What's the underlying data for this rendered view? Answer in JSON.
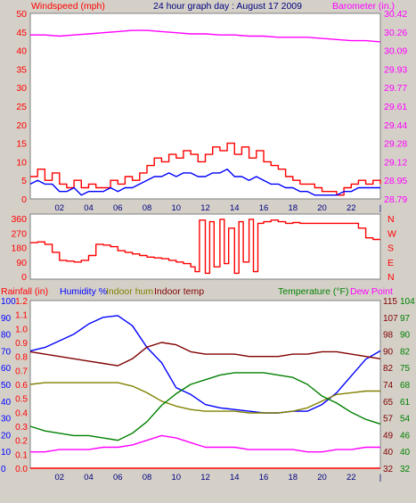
{
  "colors": {
    "background": "#d4d0c8",
    "plot_bg": "#ffffff",
    "frame": "#808080",
    "grid": "#c8c8c8",
    "wind": "#ff0000",
    "wind_avg": "#0000ff",
    "barometer": "#ff00ff",
    "direction": "#ff0000",
    "rainfall": "#ff0000",
    "humidity": "#0000ff",
    "indoor_hum": "#808000",
    "indoor_temp": "#800000",
    "temperature": "#008000",
    "dew_point": "#ff00ff"
  },
  "chart_data": [
    {
      "type": "line",
      "title": "24 hour graph day : August 17 2009",
      "ylabel_left": "Windspeed (mph)",
      "ylabel_right": "Barometer (in.)",
      "x_ticks": [
        "02",
        "04",
        "06",
        "08",
        "10",
        "12",
        "14",
        "16",
        "18",
        "20",
        "22",
        "|"
      ],
      "xlim": [
        0,
        24
      ],
      "ylim_left": [
        0,
        50
      ],
      "ylim_right": [
        28.79,
        30.42
      ],
      "y_ticks_left": [
        "0",
        "5",
        "10",
        "15",
        "20",
        "25",
        "30",
        "35",
        "40",
        "45",
        "50"
      ],
      "y_ticks_right": [
        "28.79",
        "28.95",
        "29.12",
        "29.28",
        "29.44",
        "29.61",
        "29.77",
        "29.93",
        "30.09",
        "30.26",
        "30.42"
      ],
      "grid": false,
      "series": [
        {
          "name": "Windspeed",
          "axis": "left",
          "x": [
            0,
            0.5,
            1,
            1.5,
            2,
            2.5,
            3,
            3.5,
            4,
            4.5,
            5,
            5.5,
            6,
            6.5,
            7,
            7.5,
            8,
            8.5,
            9,
            9.5,
            10,
            10.5,
            11,
            11.5,
            12,
            12.5,
            13,
            13.5,
            14,
            14.5,
            15,
            15.5,
            16,
            16.5,
            17,
            17.5,
            18,
            18.5,
            19,
            19.5,
            20,
            20.5,
            21,
            21.5,
            22,
            22.5,
            23,
            23.5,
            24
          ],
          "y": [
            6,
            8,
            5,
            7,
            4,
            3,
            5,
            3,
            4,
            3,
            3,
            5,
            4,
            6,
            5,
            7,
            9,
            11,
            10,
            12,
            11,
            13,
            12,
            10,
            12,
            14,
            13,
            15,
            12,
            14,
            11,
            13,
            10,
            9,
            8,
            6,
            5,
            4,
            4,
            3,
            2,
            2,
            1,
            3,
            4,
            5,
            4,
            5,
            4
          ]
        },
        {
          "name": "Wind average",
          "axis": "left",
          "x": [
            0,
            0.5,
            1,
            1.5,
            2,
            2.5,
            3,
            3.5,
            4,
            4.5,
            5,
            5.5,
            6,
            6.5,
            7,
            7.5,
            8,
            8.5,
            9,
            9.5,
            10,
            10.5,
            11,
            11.5,
            12,
            12.5,
            13,
            13.5,
            14,
            14.5,
            15,
            15.5,
            16,
            16.5,
            17,
            17.5,
            18,
            18.5,
            19,
            19.5,
            20,
            20.5,
            21,
            21.5,
            22,
            22.5,
            23,
            23.5,
            24
          ],
          "y": [
            4,
            5,
            4,
            4,
            2,
            2,
            3,
            1,
            2,
            2,
            2,
            3,
            2,
            3,
            3,
            4,
            5,
            6,
            6,
            7,
            6,
            7,
            7,
            6,
            6,
            7,
            7,
            8,
            6,
            6,
            5,
            6,
            5,
            4,
            4,
            3,
            3,
            2,
            2,
            1,
            1,
            1,
            1,
            2,
            2,
            3,
            3,
            3,
            3
          ]
        },
        {
          "name": "Barometer",
          "axis": "right",
          "x": [
            0,
            1,
            2,
            3,
            4,
            5,
            6,
            7,
            8,
            9,
            10,
            11,
            12,
            13,
            14,
            15,
            16,
            17,
            18,
            19,
            20,
            21,
            22,
            23,
            24
          ],
          "y": [
            30.23,
            30.23,
            30.22,
            30.23,
            30.24,
            30.25,
            30.26,
            30.27,
            30.27,
            30.26,
            30.25,
            30.24,
            30.24,
            30.23,
            30.23,
            30.22,
            30.22,
            30.21,
            30.21,
            30.21,
            30.2,
            30.19,
            30.18,
            30.18,
            30.17
          ]
        }
      ]
    },
    {
      "type": "line",
      "ylabel_right": "N W S E N",
      "right_letters": [
        "N",
        "W",
        "S",
        "E",
        "N"
      ],
      "ylim": [
        0,
        360
      ],
      "y_ticks": [
        "360",
        "270",
        "180",
        "90",
        "0"
      ],
      "series": [
        {
          "name": "Wind direction",
          "x": [
            0,
            0.5,
            1,
            1.5,
            2,
            2.5,
            3,
            3.5,
            4,
            4.5,
            5,
            5.5,
            6,
            6.5,
            7,
            7.5,
            8,
            8.5,
            9,
            9.5,
            10,
            10.5,
            11,
            11.3,
            11.6,
            12,
            12.3,
            12.6,
            13,
            13.3,
            13.6,
            14,
            14.3,
            14.6,
            15,
            15.3,
            15.6,
            16,
            16.5,
            17,
            17.5,
            18,
            18.5,
            19,
            19.5,
            20,
            20.5,
            21,
            21.5,
            22,
            22.5,
            23,
            23.5,
            24
          ],
          "y": [
            210,
            215,
            200,
            150,
            100,
            95,
            90,
            100,
            130,
            200,
            195,
            185,
            160,
            150,
            140,
            130,
            120,
            115,
            110,
            100,
            90,
            80,
            60,
            30,
            350,
            20,
            340,
            60,
            355,
            80,
            300,
            20,
            340,
            90,
            355,
            30,
            330,
            340,
            350,
            340,
            330,
            335,
            330,
            330,
            330,
            330,
            330,
            330,
            330,
            330,
            300,
            240,
            230,
            230
          ]
        }
      ]
    },
    {
      "type": "line",
      "ylabel_left": "Rainfall (in)",
      "ylabel_left_2": "Humidity %",
      "ylabel_left_3": "Indoor hum",
      "ylabel_left_4": "Indoor temp",
      "ylabel_right": "Temperature (°F)",
      "ylabel_right_2": "Dew Point",
      "y_ticks_rain": [
        "0.0",
        "0.1",
        "0.2",
        "0.3",
        "0.4",
        "0.5",
        "0.6",
        "0.7",
        "0.8",
        "0.9",
        "1.0",
        "1.1",
        "1.2"
      ],
      "y_ticks_hum": [
        "0",
        "10",
        "20",
        "30",
        "40",
        "50",
        "60",
        "70",
        "80",
        "90",
        "100"
      ],
      "y_ticks_indoor": [
        "32",
        "40",
        "49",
        "57",
        "65",
        "74",
        "82",
        "90",
        "98",
        "107",
        "115"
      ],
      "y_ticks_temp": [
        "32",
        "40",
        "46",
        "54",
        "61",
        "68",
        "75",
        "82",
        "90",
        "97",
        "104"
      ],
      "ylim_hum": [
        0,
        100
      ],
      "ylim_rain": [
        0,
        1.2
      ],
      "ylim_temp": [
        32,
        104
      ],
      "series": [
        {
          "name": "Rainfall",
          "axis": "rain",
          "x": [
            0,
            24
          ],
          "y": [
            0,
            0
          ]
        },
        {
          "name": "Humidity",
          "axis": "hum",
          "x": [
            0,
            1,
            2,
            3,
            4,
            5,
            6,
            7,
            8,
            9,
            10,
            11,
            12,
            13,
            14,
            15,
            16,
            17,
            18,
            19,
            20,
            21,
            22,
            23,
            24
          ],
          "y": [
            70,
            72,
            76,
            80,
            86,
            90,
            91,
            85,
            72,
            63,
            48,
            44,
            38,
            36,
            35,
            34,
            33,
            33,
            34,
            34,
            38,
            45,
            55,
            65,
            70
          ]
        },
        {
          "name": "Indoor hum",
          "axis": "hum",
          "x": [
            0,
            1,
            2,
            3,
            4,
            5,
            6,
            7,
            8,
            9,
            10,
            11,
            12,
            13,
            14,
            15,
            16,
            17,
            18,
            19,
            20,
            21,
            22,
            23,
            24
          ],
          "y": [
            50,
            51,
            51,
            51,
            51,
            51,
            51,
            49,
            45,
            40,
            37,
            35,
            34,
            34,
            34,
            33,
            33,
            33,
            34,
            36,
            40,
            44,
            45,
            46,
            46
          ]
        },
        {
          "name": "Indoor temp",
          "axis": "temp",
          "x": [
            0,
            1,
            2,
            3,
            4,
            5,
            6,
            7,
            8,
            9,
            10,
            11,
            12,
            13,
            14,
            15,
            16,
            17,
            18,
            19,
            20,
            21,
            22,
            23,
            24
          ],
          "y": [
            82,
            81,
            80,
            79,
            78,
            77,
            76,
            79,
            84,
            86,
            85,
            82,
            81,
            81,
            81,
            80,
            80,
            80,
            81,
            81,
            82,
            82,
            81,
            80,
            79
          ]
        },
        {
          "name": "Temperature",
          "axis": "temp",
          "x": [
            0,
            1,
            2,
            3,
            4,
            5,
            6,
            7,
            8,
            9,
            10,
            11,
            12,
            13,
            14,
            15,
            16,
            17,
            18,
            19,
            20,
            21,
            22,
            23,
            24
          ],
          "y": [
            50,
            48,
            47,
            46,
            46,
            45,
            44,
            47,
            52,
            59,
            64,
            68,
            70,
            72,
            73,
            73,
            73,
            72,
            71,
            68,
            63,
            60,
            56,
            53,
            51
          ]
        },
        {
          "name": "Dew Point",
          "axis": "temp",
          "x": [
            0,
            1,
            2,
            3,
            4,
            5,
            6,
            7,
            8,
            9,
            10,
            11,
            12,
            13,
            14,
            15,
            16,
            17,
            18,
            19,
            20,
            21,
            22,
            23,
            24
          ],
          "y": [
            39,
            39,
            40,
            40,
            40,
            41,
            41,
            42,
            44,
            46,
            45,
            43,
            41,
            41,
            41,
            40,
            40,
            40,
            40,
            39,
            39,
            40,
            40,
            41,
            41
          ]
        }
      ]
    }
  ]
}
